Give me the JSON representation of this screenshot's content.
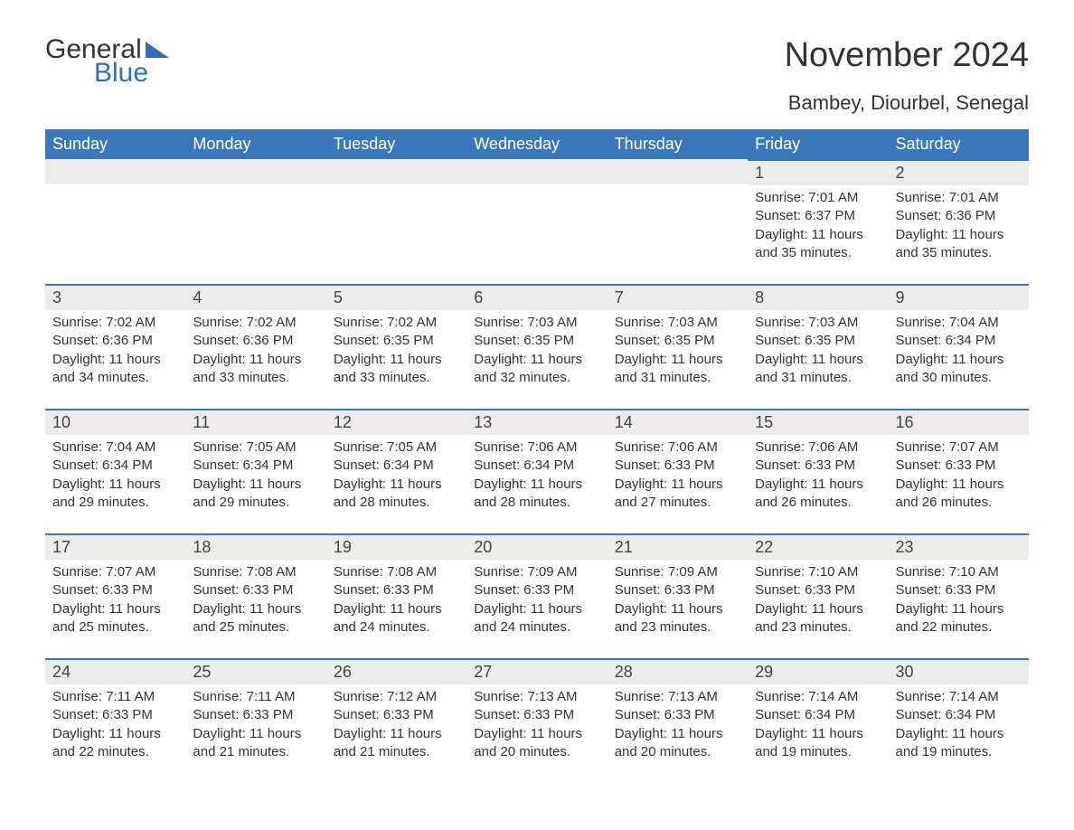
{
  "logo": {
    "part1": "General",
    "part2": "Blue"
  },
  "title": "November 2024",
  "location": "Bambey, Diourbel, Senegal",
  "colors": {
    "header_bg": "#3a78bb",
    "header_text": "#ffffff",
    "daynum_bg": "#ececec",
    "border_top": "#3a78bb",
    "body_text": "#333333",
    "logo_blue": "#2f6fb3",
    "page_bg": "#ffffff"
  },
  "type": "calendar",
  "layout": {
    "columns": 7,
    "rows": 5
  },
  "weekdays": [
    "Sunday",
    "Monday",
    "Tuesday",
    "Wednesday",
    "Thursday",
    "Friday",
    "Saturday"
  ],
  "fonts": {
    "title_size_pt": 38,
    "location_size_pt": 22,
    "weekday_size_pt": 18,
    "daynum_size_pt": 18,
    "body_size_pt": 15
  },
  "weeks": [
    [
      {
        "empty": true
      },
      {
        "empty": true
      },
      {
        "empty": true
      },
      {
        "empty": true
      },
      {
        "empty": true
      },
      {
        "day": "1",
        "sunrise": "Sunrise: 7:01 AM",
        "sunset": "Sunset: 6:37 PM",
        "daylight": "Daylight: 11 hours and 35 minutes."
      },
      {
        "day": "2",
        "sunrise": "Sunrise: 7:01 AM",
        "sunset": "Sunset: 6:36 PM",
        "daylight": "Daylight: 11 hours and 35 minutes."
      }
    ],
    [
      {
        "day": "3",
        "sunrise": "Sunrise: 7:02 AM",
        "sunset": "Sunset: 6:36 PM",
        "daylight": "Daylight: 11 hours and 34 minutes."
      },
      {
        "day": "4",
        "sunrise": "Sunrise: 7:02 AM",
        "sunset": "Sunset: 6:36 PM",
        "daylight": "Daylight: 11 hours and 33 minutes."
      },
      {
        "day": "5",
        "sunrise": "Sunrise: 7:02 AM",
        "sunset": "Sunset: 6:35 PM",
        "daylight": "Daylight: 11 hours and 33 minutes."
      },
      {
        "day": "6",
        "sunrise": "Sunrise: 7:03 AM",
        "sunset": "Sunset: 6:35 PM",
        "daylight": "Daylight: 11 hours and 32 minutes."
      },
      {
        "day": "7",
        "sunrise": "Sunrise: 7:03 AM",
        "sunset": "Sunset: 6:35 PM",
        "daylight": "Daylight: 11 hours and 31 minutes."
      },
      {
        "day": "8",
        "sunrise": "Sunrise: 7:03 AM",
        "sunset": "Sunset: 6:35 PM",
        "daylight": "Daylight: 11 hours and 31 minutes."
      },
      {
        "day": "9",
        "sunrise": "Sunrise: 7:04 AM",
        "sunset": "Sunset: 6:34 PM",
        "daylight": "Daylight: 11 hours and 30 minutes."
      }
    ],
    [
      {
        "day": "10",
        "sunrise": "Sunrise: 7:04 AM",
        "sunset": "Sunset: 6:34 PM",
        "daylight": "Daylight: 11 hours and 29 minutes."
      },
      {
        "day": "11",
        "sunrise": "Sunrise: 7:05 AM",
        "sunset": "Sunset: 6:34 PM",
        "daylight": "Daylight: 11 hours and 29 minutes."
      },
      {
        "day": "12",
        "sunrise": "Sunrise: 7:05 AM",
        "sunset": "Sunset: 6:34 PM",
        "daylight": "Daylight: 11 hours and 28 minutes."
      },
      {
        "day": "13",
        "sunrise": "Sunrise: 7:06 AM",
        "sunset": "Sunset: 6:34 PM",
        "daylight": "Daylight: 11 hours and 28 minutes."
      },
      {
        "day": "14",
        "sunrise": "Sunrise: 7:06 AM",
        "sunset": "Sunset: 6:33 PM",
        "daylight": "Daylight: 11 hours and 27 minutes."
      },
      {
        "day": "15",
        "sunrise": "Sunrise: 7:06 AM",
        "sunset": "Sunset: 6:33 PM",
        "daylight": "Daylight: 11 hours and 26 minutes."
      },
      {
        "day": "16",
        "sunrise": "Sunrise: 7:07 AM",
        "sunset": "Sunset: 6:33 PM",
        "daylight": "Daylight: 11 hours and 26 minutes."
      }
    ],
    [
      {
        "day": "17",
        "sunrise": "Sunrise: 7:07 AM",
        "sunset": "Sunset: 6:33 PM",
        "daylight": "Daylight: 11 hours and 25 minutes."
      },
      {
        "day": "18",
        "sunrise": "Sunrise: 7:08 AM",
        "sunset": "Sunset: 6:33 PM",
        "daylight": "Daylight: 11 hours and 25 minutes."
      },
      {
        "day": "19",
        "sunrise": "Sunrise: 7:08 AM",
        "sunset": "Sunset: 6:33 PM",
        "daylight": "Daylight: 11 hours and 24 minutes."
      },
      {
        "day": "20",
        "sunrise": "Sunrise: 7:09 AM",
        "sunset": "Sunset: 6:33 PM",
        "daylight": "Daylight: 11 hours and 24 minutes."
      },
      {
        "day": "21",
        "sunrise": "Sunrise: 7:09 AM",
        "sunset": "Sunset: 6:33 PM",
        "daylight": "Daylight: 11 hours and 23 minutes."
      },
      {
        "day": "22",
        "sunrise": "Sunrise: 7:10 AM",
        "sunset": "Sunset: 6:33 PM",
        "daylight": "Daylight: 11 hours and 23 minutes."
      },
      {
        "day": "23",
        "sunrise": "Sunrise: 7:10 AM",
        "sunset": "Sunset: 6:33 PM",
        "daylight": "Daylight: 11 hours and 22 minutes."
      }
    ],
    [
      {
        "day": "24",
        "sunrise": "Sunrise: 7:11 AM",
        "sunset": "Sunset: 6:33 PM",
        "daylight": "Daylight: 11 hours and 22 minutes."
      },
      {
        "day": "25",
        "sunrise": "Sunrise: 7:11 AM",
        "sunset": "Sunset: 6:33 PM",
        "daylight": "Daylight: 11 hours and 21 minutes."
      },
      {
        "day": "26",
        "sunrise": "Sunrise: 7:12 AM",
        "sunset": "Sunset: 6:33 PM",
        "daylight": "Daylight: 11 hours and 21 minutes."
      },
      {
        "day": "27",
        "sunrise": "Sunrise: 7:13 AM",
        "sunset": "Sunset: 6:33 PM",
        "daylight": "Daylight: 11 hours and 20 minutes."
      },
      {
        "day": "28",
        "sunrise": "Sunrise: 7:13 AM",
        "sunset": "Sunset: 6:33 PM",
        "daylight": "Daylight: 11 hours and 20 minutes."
      },
      {
        "day": "29",
        "sunrise": "Sunrise: 7:14 AM",
        "sunset": "Sunset: 6:34 PM",
        "daylight": "Daylight: 11 hours and 19 minutes."
      },
      {
        "day": "30",
        "sunrise": "Sunrise: 7:14 AM",
        "sunset": "Sunset: 6:34 PM",
        "daylight": "Daylight: 11 hours and 19 minutes."
      }
    ]
  ]
}
